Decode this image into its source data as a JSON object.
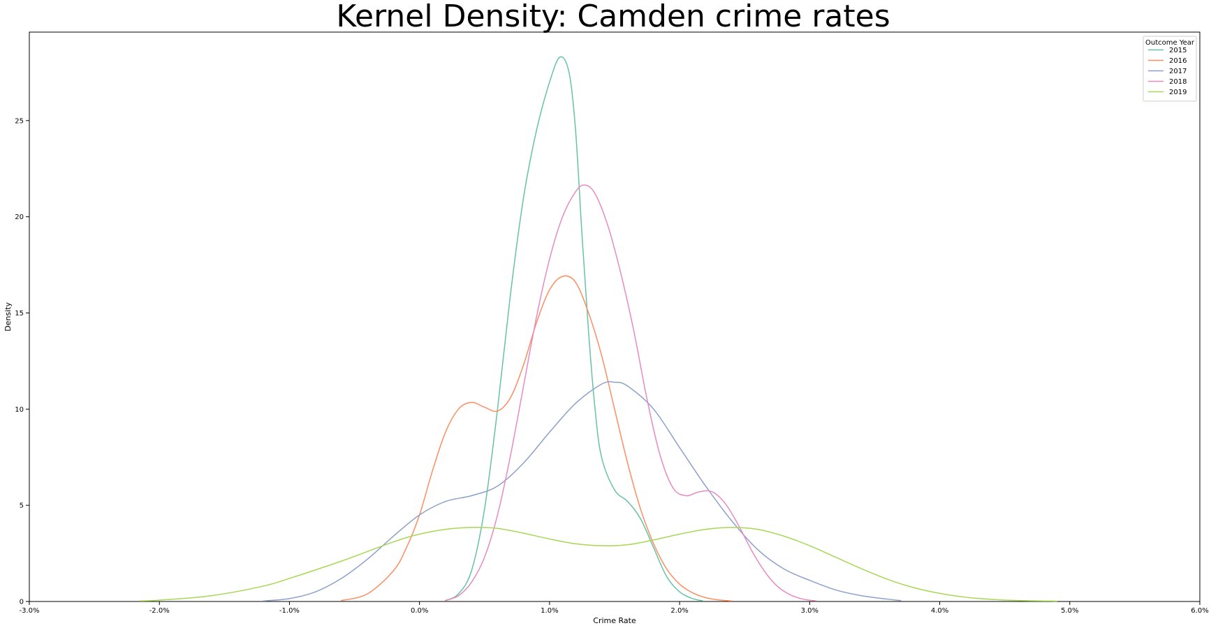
{
  "chart_data": {
    "type": "line",
    "title": "Kernel Density: Camden crime rates",
    "xlabel": "Crime Rate",
    "ylabel": "Density",
    "xlim": [
      -3.0,
      6.0
    ],
    "ylim": [
      0,
      29.6
    ],
    "x_ticks": [
      -3,
      -2,
      -1,
      0,
      1,
      2,
      3,
      4,
      5,
      6
    ],
    "x_tick_labels": [
      "-3.0%",
      "-2.0%",
      "-1.0%",
      "0.0%",
      "1.0%",
      "2.0%",
      "3.0%",
      "4.0%",
      "5.0%",
      "6.0%"
    ],
    "y_ticks": [
      0,
      5,
      10,
      15,
      20,
      25
    ],
    "y_tick_labels": [
      "0",
      "5",
      "10",
      "15",
      "20",
      "25"
    ],
    "grid": false,
    "legend": {
      "title": "Outcome Year",
      "placement": "top-right"
    },
    "series": [
      {
        "name": "2015",
        "color": "#66c2a5",
        "points": [
          [
            0.2,
            0.05
          ],
          [
            0.3,
            0.4
          ],
          [
            0.4,
            1.6
          ],
          [
            0.5,
            4.8
          ],
          [
            0.6,
            10.0
          ],
          [
            0.7,
            16.0
          ],
          [
            0.8,
            21.0
          ],
          [
            0.9,
            24.5
          ],
          [
            1.0,
            27.0
          ],
          [
            1.08,
            28.3
          ],
          [
            1.15,
            27.5
          ],
          [
            1.2,
            24.5
          ],
          [
            1.25,
            19.0
          ],
          [
            1.3,
            14.0
          ],
          [
            1.35,
            10.0
          ],
          [
            1.4,
            7.5
          ],
          [
            1.5,
            5.8
          ],
          [
            1.6,
            5.2
          ],
          [
            1.7,
            4.3
          ],
          [
            1.8,
            2.8
          ],
          [
            1.9,
            1.3
          ],
          [
            2.0,
            0.5
          ],
          [
            2.1,
            0.15
          ],
          [
            2.18,
            0.03
          ]
        ]
      },
      {
        "name": "2016",
        "color": "#fc8d62",
        "points": [
          [
            -0.6,
            0.05
          ],
          [
            -0.4,
            0.4
          ],
          [
            -0.2,
            1.6
          ],
          [
            -0.1,
            2.8
          ],
          [
            0.0,
            4.5
          ],
          [
            0.1,
            6.8
          ],
          [
            0.2,
            8.8
          ],
          [
            0.3,
            10.0
          ],
          [
            0.4,
            10.35
          ],
          [
            0.5,
            10.1
          ],
          [
            0.6,
            9.9
          ],
          [
            0.7,
            10.6
          ],
          [
            0.8,
            12.3
          ],
          [
            0.9,
            14.5
          ],
          [
            1.0,
            16.2
          ],
          [
            1.1,
            16.9
          ],
          [
            1.2,
            16.6
          ],
          [
            1.3,
            15.0
          ],
          [
            1.4,
            12.8
          ],
          [
            1.5,
            10.0
          ],
          [
            1.6,
            7.2
          ],
          [
            1.7,
            4.8
          ],
          [
            1.8,
            3.0
          ],
          [
            1.9,
            1.7
          ],
          [
            2.0,
            0.9
          ],
          [
            2.1,
            0.45
          ],
          [
            2.2,
            0.2
          ],
          [
            2.3,
            0.08
          ],
          [
            2.4,
            0.03
          ]
        ]
      },
      {
        "name": "2017",
        "color": "#8da0cb",
        "points": [
          [
            -1.2,
            0.03
          ],
          [
            -1.0,
            0.15
          ],
          [
            -0.8,
            0.5
          ],
          [
            -0.6,
            1.2
          ],
          [
            -0.4,
            2.2
          ],
          [
            -0.2,
            3.4
          ],
          [
            0.0,
            4.5
          ],
          [
            0.2,
            5.2
          ],
          [
            0.4,
            5.5
          ],
          [
            0.6,
            6.0
          ],
          [
            0.8,
            7.2
          ],
          [
            1.0,
            8.8
          ],
          [
            1.2,
            10.3
          ],
          [
            1.4,
            11.3
          ],
          [
            1.5,
            11.4
          ],
          [
            1.6,
            11.2
          ],
          [
            1.8,
            10.0
          ],
          [
            2.0,
            8.0
          ],
          [
            2.2,
            6.0
          ],
          [
            2.4,
            4.2
          ],
          [
            2.6,
            2.7
          ],
          [
            2.8,
            1.7
          ],
          [
            3.0,
            1.1
          ],
          [
            3.2,
            0.6
          ],
          [
            3.4,
            0.3
          ],
          [
            3.6,
            0.12
          ],
          [
            3.7,
            0.05
          ]
        ]
      },
      {
        "name": "2018",
        "color": "#e78ac3",
        "points": [
          [
            0.2,
            0.05
          ],
          [
            0.3,
            0.3
          ],
          [
            0.4,
            1.0
          ],
          [
            0.5,
            2.3
          ],
          [
            0.6,
            4.5
          ],
          [
            0.7,
            7.6
          ],
          [
            0.8,
            11.2
          ],
          [
            0.9,
            14.8
          ],
          [
            1.0,
            17.8
          ],
          [
            1.1,
            20.0
          ],
          [
            1.2,
            21.3
          ],
          [
            1.27,
            21.65
          ],
          [
            1.35,
            21.2
          ],
          [
            1.45,
            19.5
          ],
          [
            1.55,
            17.0
          ],
          [
            1.65,
            14.0
          ],
          [
            1.75,
            10.5
          ],
          [
            1.85,
            7.6
          ],
          [
            1.95,
            5.9
          ],
          [
            2.05,
            5.5
          ],
          [
            2.15,
            5.7
          ],
          [
            2.25,
            5.7
          ],
          [
            2.35,
            5.1
          ],
          [
            2.45,
            4.0
          ],
          [
            2.55,
            2.7
          ],
          [
            2.65,
            1.6
          ],
          [
            2.75,
            0.8
          ],
          [
            2.85,
            0.35
          ],
          [
            2.95,
            0.12
          ],
          [
            3.05,
            0.03
          ]
        ]
      },
      {
        "name": "2019",
        "color": "#a6d854",
        "points": [
          [
            -2.15,
            0.03
          ],
          [
            -2.0,
            0.07
          ],
          [
            -1.6,
            0.3
          ],
          [
            -1.2,
            0.8
          ],
          [
            -1.0,
            1.2
          ],
          [
            -0.6,
            2.1
          ],
          [
            -0.2,
            3.1
          ],
          [
            0.0,
            3.5
          ],
          [
            0.2,
            3.75
          ],
          [
            0.4,
            3.85
          ],
          [
            0.6,
            3.8
          ],
          [
            0.8,
            3.55
          ],
          [
            1.0,
            3.25
          ],
          [
            1.2,
            3.0
          ],
          [
            1.4,
            2.9
          ],
          [
            1.6,
            2.95
          ],
          [
            1.8,
            3.2
          ],
          [
            2.0,
            3.5
          ],
          [
            2.2,
            3.75
          ],
          [
            2.4,
            3.85
          ],
          [
            2.6,
            3.75
          ],
          [
            2.8,
            3.4
          ],
          [
            3.0,
            2.9
          ],
          [
            3.2,
            2.3
          ],
          [
            3.4,
            1.7
          ],
          [
            3.6,
            1.15
          ],
          [
            3.8,
            0.72
          ],
          [
            4.0,
            0.42
          ],
          [
            4.2,
            0.22
          ],
          [
            4.4,
            0.11
          ],
          [
            4.6,
            0.05
          ],
          [
            4.9,
            0.02
          ]
        ]
      }
    ]
  }
}
